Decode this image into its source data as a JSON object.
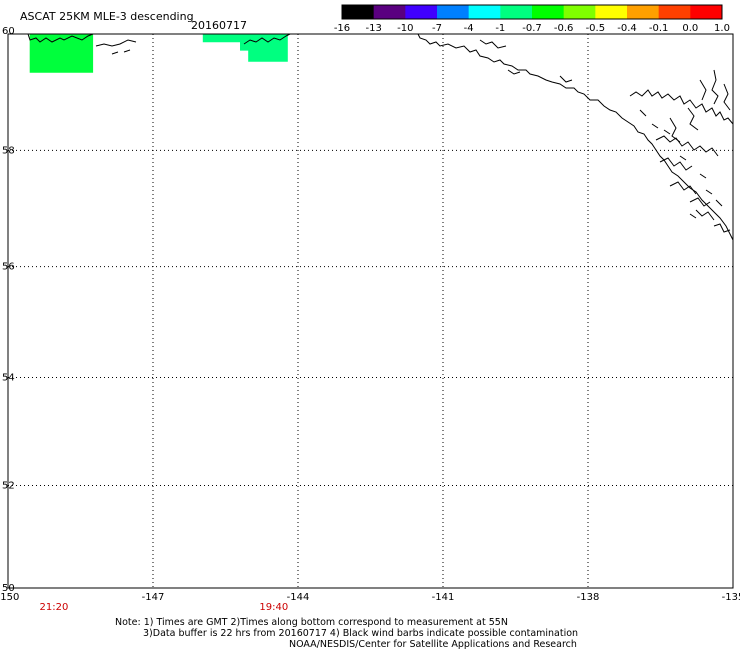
{
  "title": "ASCAT 25KM MLE-3 descending",
  "date": "20160717",
  "colorbar": {
    "labels": [
      "-16",
      "-13",
      "-10",
      "-7",
      "-4",
      "-1",
      "-0.7",
      "-0.6",
      "-0.5",
      "-0.4",
      "-0.1",
      "0.0",
      "1.0"
    ],
    "colors": [
      "#000000",
      "#5a0080",
      "#4000ff",
      "#0080ff",
      "#00ffff",
      "#00ff80",
      "#00ff00",
      "#80ff00",
      "#ffff00",
      "#ffa000",
      "#ff4000",
      "#ff0000"
    ]
  },
  "map": {
    "lon_min": -150,
    "lon_max": -135,
    "lat_min": 50,
    "lat_max": 60,
    "lon_ticks": [
      -150,
      -147,
      -144,
      -141,
      -138,
      -135
    ],
    "lon_tick_labels": [
      "-150",
      "-147",
      "-144",
      "-141",
      "-138",
      "-135"
    ],
    "lat_ticks": [
      60,
      58,
      56,
      54,
      52,
      50
    ],
    "lat_tick_labels": [
      "60",
      "58",
      "56",
      "54",
      "52",
      "50"
    ],
    "lat_tick_values": [
      60,
      57.9,
      55.8,
      53.8,
      51.85,
      50
    ],
    "time_labels": [
      {
        "text": "21:20",
        "lon": -149.05
      },
      {
        "text": "19:40",
        "lon": -144.5
      }
    ],
    "data_regions": [
      {
        "color": "#00ff3c",
        "polygon": [
          [
            -149.55,
            60
          ],
          [
            -148.24,
            60
          ],
          [
            -148.24,
            59.3
          ],
          [
            -149.55,
            59.3
          ]
        ]
      },
      {
        "color": "#00ff80",
        "polygon": [
          [
            -145.97,
            60
          ],
          [
            -144.21,
            60
          ],
          [
            -144.21,
            59.5
          ],
          [
            -145.03,
            59.5
          ],
          [
            -145.03,
            59.7
          ],
          [
            -145.2,
            59.7
          ],
          [
            -145.2,
            59.85
          ],
          [
            -145.97,
            59.85
          ]
        ]
      }
    ]
  },
  "notes": {
    "line1": "Note: 1) Times are GMT 2)Times along bottom correspond to measurement at 55N",
    "line2": "3)Data buffer is 22 hrs from 20160717 4) Black wind barbs indicate possible contamination",
    "line3": "NOAA/NESDIS/Center for Satellite Applications and Research"
  }
}
